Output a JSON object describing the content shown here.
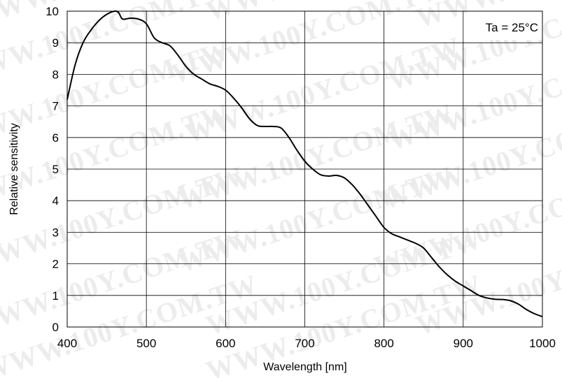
{
  "chart_data": {
    "type": "line",
    "title": "",
    "xlabel": "Wavelength [nm]",
    "ylabel": "Relative sensitivity",
    "xlim": [
      400,
      1000
    ],
    "ylim": [
      0,
      10
    ],
    "x_ticks": [
      400,
      500,
      600,
      700,
      800,
      900,
      1000
    ],
    "y_ticks": [
      0,
      1,
      2,
      3,
      4,
      5,
      6,
      7,
      8,
      9,
      10
    ],
    "x_tick_labels": [
      "400",
      "500",
      "600",
      "700",
      "800",
      "900",
      "1000"
    ],
    "y_tick_labels": [
      "0",
      "1",
      "2",
      "3",
      "4",
      "5",
      "6",
      "7",
      "8",
      "9",
      "10"
    ],
    "grid": true,
    "annotation": "Ta = 25°C",
    "annotation_position": "top-right",
    "watermark": "WWW.100Y.COM.TW",
    "line_color": "#000000",
    "series": [
      {
        "x": [
          400,
          410,
          420,
          430,
          440,
          450,
          460,
          465,
          470,
          480,
          490,
          500,
          510,
          520,
          530,
          540,
          550,
          560,
          570,
          580,
          590,
          600,
          610,
          620,
          630,
          640,
          650,
          660,
          670,
          680,
          690,
          700,
          710,
          720,
          730,
          740,
          750,
          760,
          770,
          780,
          790,
          800,
          810,
          820,
          830,
          840,
          850,
          860,
          870,
          880,
          890,
          900,
          910,
          920,
          930,
          940,
          950,
          960,
          970,
          980,
          990,
          1000
        ],
        "y": [
          7.2,
          8.3,
          9.0,
          9.4,
          9.7,
          9.9,
          10.0,
          9.95,
          9.75,
          9.78,
          9.75,
          9.6,
          9.15,
          9.0,
          8.9,
          8.6,
          8.25,
          8.0,
          7.85,
          7.7,
          7.62,
          7.5,
          7.25,
          6.95,
          6.6,
          6.38,
          6.35,
          6.35,
          6.3,
          6.0,
          5.6,
          5.25,
          5.0,
          4.82,
          4.78,
          4.8,
          4.72,
          4.5,
          4.2,
          3.85,
          3.5,
          3.15,
          2.95,
          2.85,
          2.75,
          2.65,
          2.5,
          2.2,
          1.9,
          1.65,
          1.45,
          1.3,
          1.15,
          1.0,
          0.92,
          0.88,
          0.87,
          0.83,
          0.72,
          0.55,
          0.42,
          0.33
        ]
      }
    ]
  }
}
